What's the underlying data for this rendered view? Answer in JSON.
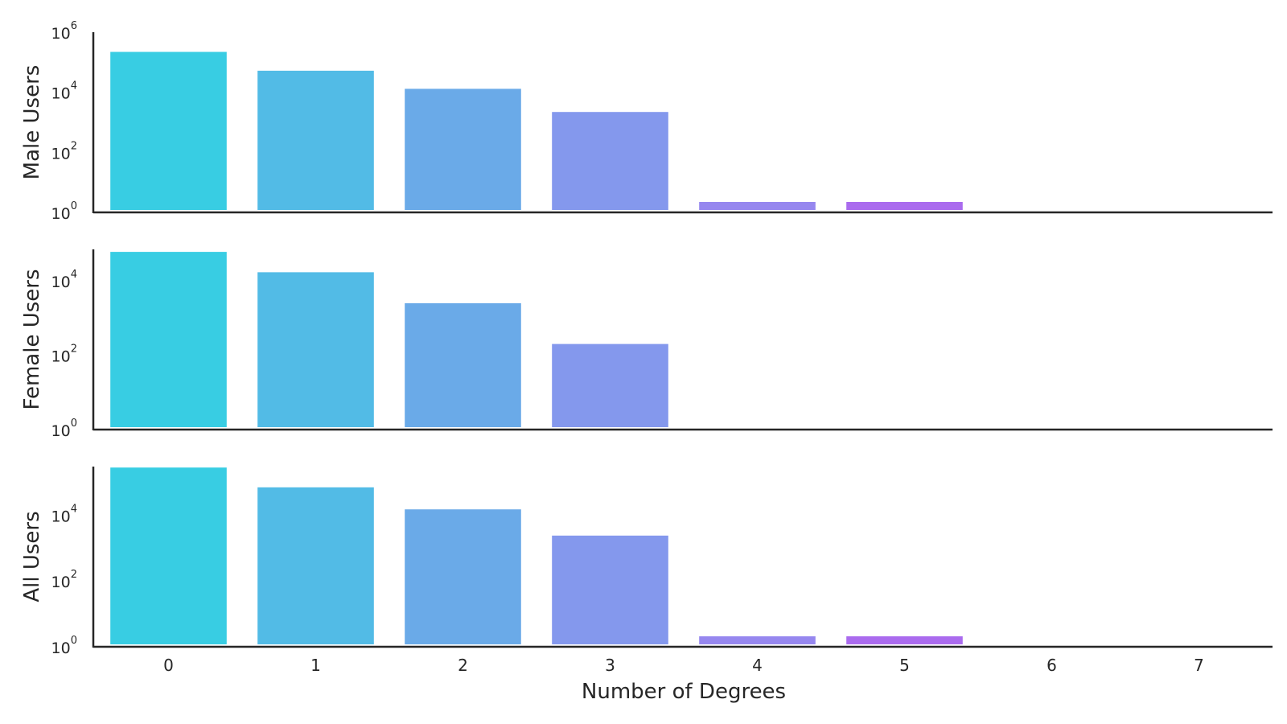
{
  "chart_data": {
    "type": "bar",
    "layout": "stacked-subplots",
    "shared_x": true,
    "categories": [
      "0",
      "1",
      "2",
      "3",
      "4",
      "5",
      "6",
      "7"
    ],
    "xlabel": "Number of Degrees",
    "y_scale": "log",
    "colors": [
      "#38cde3",
      "#52bbe6",
      "#6aaae8",
      "#8498ed",
      "#9687ef",
      "#aa6bee",
      "#b55def",
      "#c04ef0"
    ],
    "panels": [
      {
        "ylabel": "Male Users",
        "ylim": [
          1,
          1000000
        ],
        "yticks": [
          {
            "base": "10",
            "exp": "0"
          },
          {
            "base": "10",
            "exp": "2"
          },
          {
            "base": "10",
            "exp": "4"
          },
          {
            "base": "10",
            "exp": "6"
          }
        ],
        "values": [
          220000,
          52000,
          13000,
          2200,
          2,
          2,
          0,
          0
        ]
      },
      {
        "ylabel": "Female Users",
        "ylim": [
          1,
          70000
        ],
        "yticks": [
          {
            "base": "10",
            "exp": "0"
          },
          {
            "base": "10",
            "exp": "2"
          },
          {
            "base": "10",
            "exp": "4"
          }
        ],
        "values": [
          60000,
          17000,
          2500,
          200,
          0,
          0,
          0,
          0
        ]
      },
      {
        "ylabel": "All Users",
        "ylim": [
          1,
          300000
        ],
        "yticks": [
          {
            "base": "10",
            "exp": "0"
          },
          {
            "base": "10",
            "exp": "2"
          },
          {
            "base": "10",
            "exp": "4"
          }
        ],
        "values": [
          280000,
          70000,
          15000,
          2400,
          2,
          2,
          0,
          0
        ]
      }
    ]
  }
}
